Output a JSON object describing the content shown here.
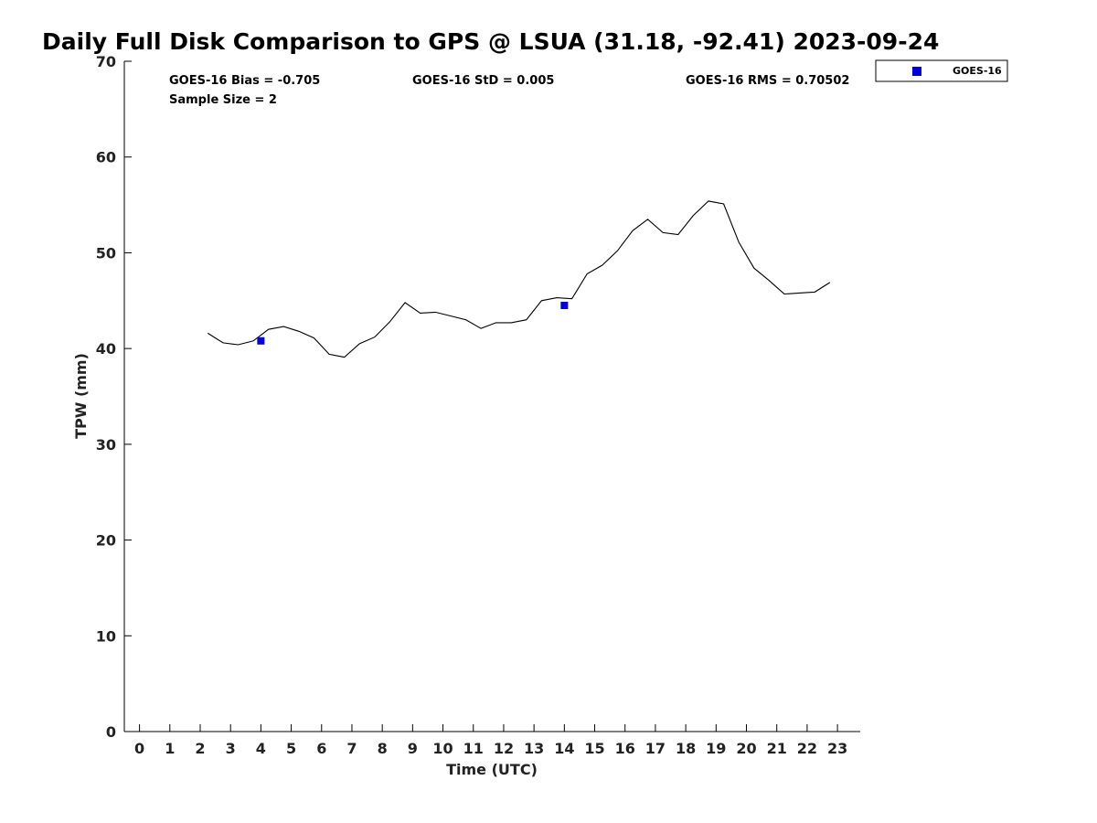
{
  "chart_data": {
    "type": "line",
    "title": "Daily Full Disk Comparison to GPS @ LSUA (31.18, -92.41) 2023-09-24",
    "xlabel": "Time (UTC)",
    "ylabel": "TPW (mm)",
    "xlim": [
      -0.5,
      23.75
    ],
    "ylim": [
      0,
      70
    ],
    "x_ticks": [
      0,
      1,
      2,
      3,
      4,
      5,
      6,
      7,
      8,
      9,
      10,
      11,
      12,
      13,
      14,
      15,
      16,
      17,
      18,
      19,
      20,
      21,
      22,
      23
    ],
    "y_ticks": [
      0,
      10,
      20,
      30,
      40,
      50,
      60,
      70
    ],
    "grid": false,
    "legend_position": "top-right",
    "stats": {
      "bias": "GOES-16 Bias = -0.705",
      "std": "GOES-16 StD = 0.005",
      "rms": "GOES-16 RMS = 0.70502",
      "sample": "Sample Size = 2"
    },
    "series": [
      {
        "line_color": "#000000",
        "x": [
          2.25,
          2.75,
          3.25,
          3.75,
          4.25,
          4.75,
          5.25,
          5.75,
          6.25,
          6.75,
          7.25,
          7.75,
          8.25,
          8.75,
          9.25,
          9.75,
          10.25,
          10.75,
          11.25,
          11.75,
          12.25,
          12.75,
          13.25,
          13.75,
          14.25,
          14.75,
          15.25,
          15.75,
          16.25,
          16.75,
          17.25,
          17.75,
          18.25,
          18.75,
          19.25,
          19.75,
          20.25,
          20.75,
          21.25,
          21.75,
          22.25,
          22.75
        ],
        "y": [
          41.6,
          40.6,
          40.4,
          40.8,
          42.0,
          42.3,
          41.8,
          41.1,
          39.4,
          39.1,
          40.5,
          41.2,
          42.8,
          44.8,
          43.7,
          43.8,
          43.4,
          43.0,
          42.1,
          42.7,
          42.7,
          43.0,
          45.0,
          45.3,
          45.2,
          47.8,
          48.7,
          50.2,
          52.3,
          53.5,
          52.1,
          51.9,
          53.9,
          55.4,
          55.1,
          51.1,
          48.4,
          47.1,
          45.7,
          45.8,
          45.9,
          46.9
        ]
      },
      {
        "name": "GOES-16",
        "marker_color": "#0000dd",
        "x": [
          4.0,
          14.0
        ],
        "y": [
          40.8,
          44.5
        ]
      }
    ]
  }
}
